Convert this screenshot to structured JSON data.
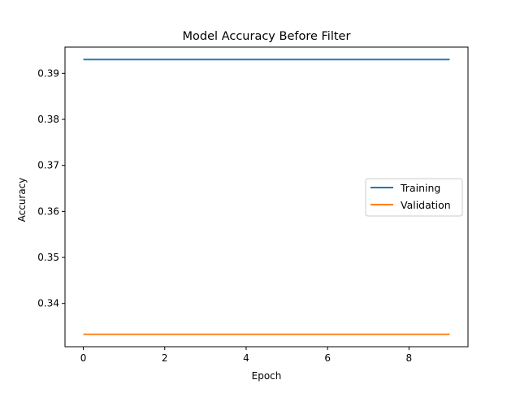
{
  "chart_data": {
    "type": "line",
    "title": "Model Accuracy Before Filter",
    "xlabel": "Epoch",
    "ylabel": "Accuracy",
    "x": [
      0,
      1,
      2,
      3,
      4,
      5,
      6,
      7,
      8,
      9
    ],
    "xlim": [
      -0.45,
      9.45
    ],
    "ylim": [
      0.3306,
      0.3957
    ],
    "xticks": [
      0,
      2,
      4,
      6,
      8
    ],
    "xtick_labels": [
      "0",
      "2",
      "4",
      "6",
      "8"
    ],
    "yticks": [
      0.34,
      0.35,
      0.36,
      0.37,
      0.38,
      0.39
    ],
    "ytick_labels": [
      "0.34",
      "0.35",
      "0.36",
      "0.37",
      "0.38",
      "0.39"
    ],
    "grid": false,
    "legend_position": "center-right",
    "series": [
      {
        "name": "Training",
        "color": "#1f77b4",
        "values": [
          0.393,
          0.393,
          0.393,
          0.393,
          0.393,
          0.393,
          0.393,
          0.393,
          0.393,
          0.393
        ]
      },
      {
        "name": "Validation",
        "color": "#ff7f0e",
        "values": [
          0.3333,
          0.3333,
          0.3333,
          0.3333,
          0.3333,
          0.3333,
          0.3333,
          0.3333,
          0.3333,
          0.3333
        ]
      }
    ]
  }
}
